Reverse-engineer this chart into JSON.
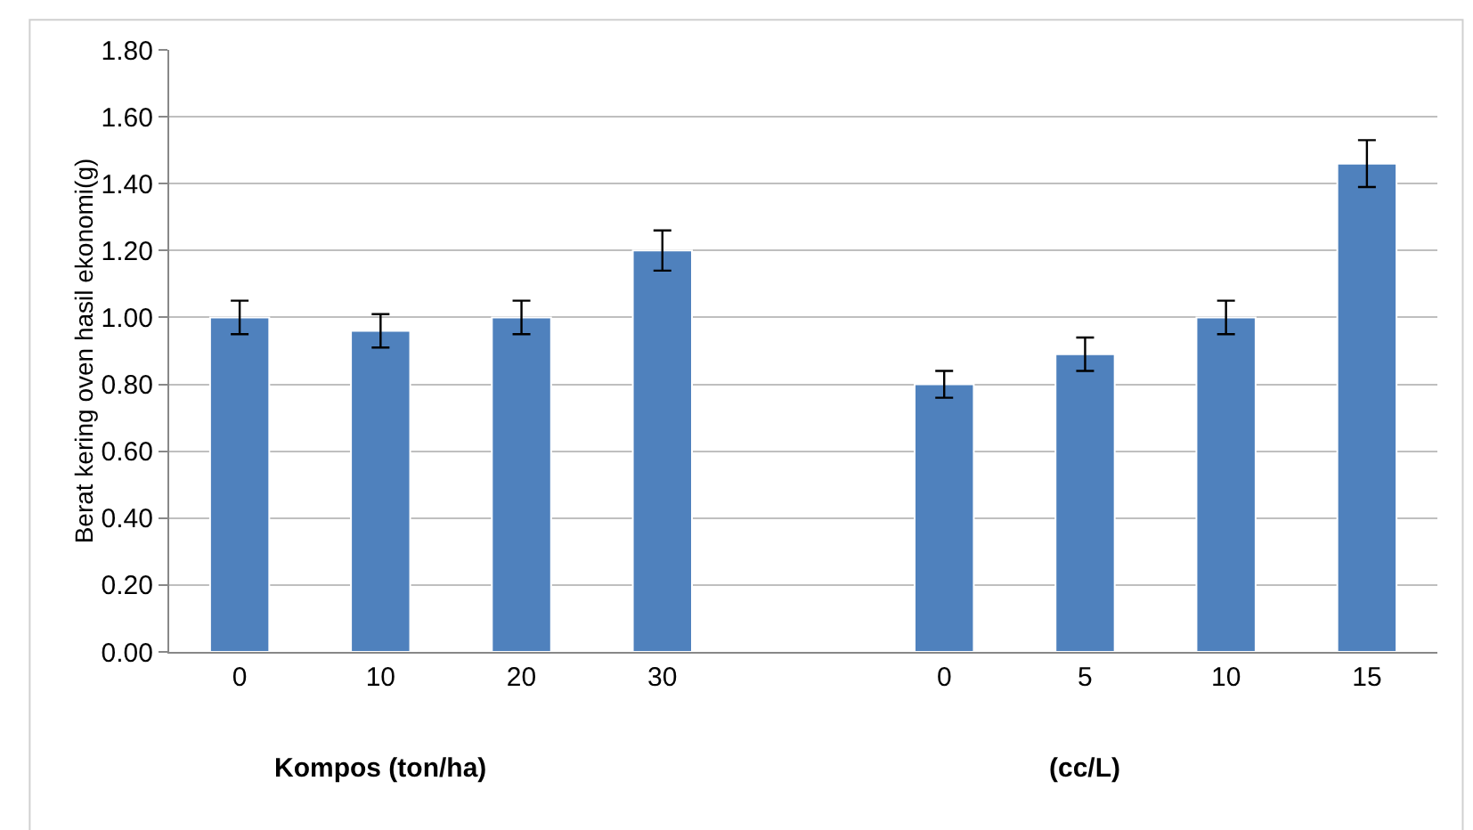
{
  "chart_data": {
    "type": "bar",
    "ylabel": "Berat kering oven hasil ekonomi(g)",
    "categories": [
      "0",
      "10",
      "20",
      "30",
      null,
      "0",
      "5",
      "10",
      "15"
    ],
    "values": [
      1.0,
      0.96,
      1.0,
      1.2,
      null,
      0.8,
      0.89,
      1.0,
      1.46
    ],
    "errors": [
      0.05,
      0.05,
      0.05,
      0.06,
      null,
      0.04,
      0.05,
      0.05,
      0.07
    ],
    "color": "#4f81bd",
    "ylim": [
      0,
      1.8
    ],
    "yticks": [
      {
        "value": 0,
        "label": "0.00"
      },
      {
        "value": 0.2,
        "label": "0.20"
      },
      {
        "value": 0.4,
        "label": "0.40"
      },
      {
        "value": 0.6,
        "label": "0.60"
      },
      {
        "value": 0.8,
        "label": "0.80"
      },
      {
        "value": 1.0,
        "label": "1.00"
      },
      {
        "value": 1.2,
        "label": "1.20"
      },
      {
        "value": 1.4,
        "label": "1.40"
      },
      {
        "value": 1.6,
        "label": "1.60"
      },
      {
        "value": 1.8,
        "label": "1.80"
      }
    ],
    "grid": "y",
    "annotations": [
      "Kompos (ton/ha)",
      "(cc/L)"
    ]
  }
}
